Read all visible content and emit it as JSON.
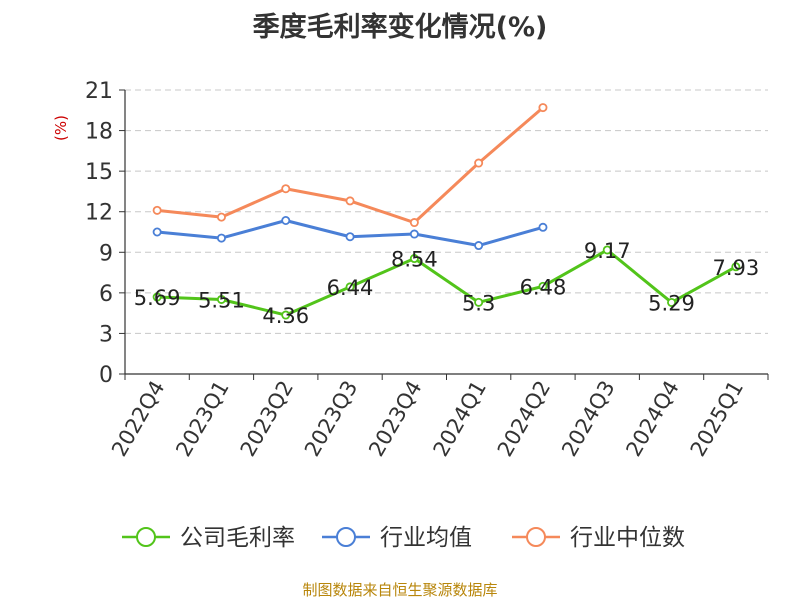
{
  "chart_data": {
    "type": "line",
    "title": "季度毛利率变化情况(%)",
    "ylabel": "(%)",
    "xlabel": "",
    "ylim": [
      0,
      21
    ],
    "yticks": [
      0,
      3,
      6,
      9,
      12,
      15,
      18,
      21
    ],
    "grid": true,
    "legend_position": "bottom",
    "categories": [
      "2022Q4",
      "2023Q1",
      "2023Q2",
      "2023Q3",
      "2023Q4",
      "2024Q1",
      "2024Q2",
      "2024Q3",
      "2024Q4",
      "2025Q1"
    ],
    "series": [
      {
        "name": "公司毛利率",
        "color": "#52c41a",
        "values": [
          5.69,
          5.51,
          4.36,
          6.44,
          8.54,
          5.3,
          6.48,
          9.17,
          5.29,
          7.93
        ],
        "labels": [
          "5.69",
          "5.51",
          "4.36",
          "6.44",
          "8.54",
          "5.3",
          "6.48",
          "9.17",
          "5.29",
          "7.93"
        ],
        "show_labels": true
      },
      {
        "name": "行业均值",
        "color": "#4a7fd6",
        "values": [
          10.5,
          10.05,
          11.35,
          10.15,
          10.35,
          9.5,
          10.85,
          null,
          null,
          null
        ],
        "show_labels": false
      },
      {
        "name": "行业中位数",
        "color": "#f5895a",
        "values": [
          12.1,
          11.6,
          13.7,
          12.8,
          11.2,
          15.6,
          19.7,
          null,
          null,
          null
        ],
        "show_labels": false
      }
    ]
  },
  "footer": {
    "source": "制图数据来自恒生聚源数据库"
  },
  "colors": {
    "title": "#333333",
    "axis": "#333333",
    "grid": "#c8c8c8",
    "ylabel": "#cc0000",
    "footer": "#b8860b"
  }
}
